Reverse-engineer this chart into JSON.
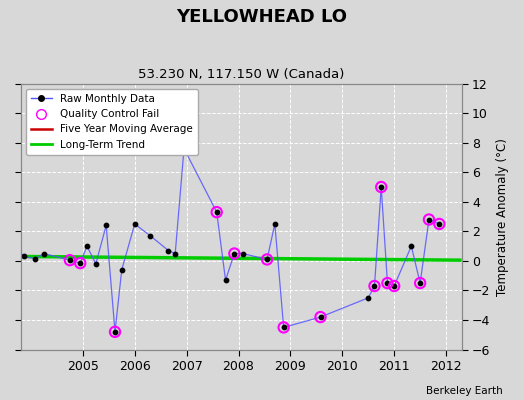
{
  "title": "YELLOWHEAD LO",
  "subtitle": "53.230 N, 117.150 W (Canada)",
  "ylabel_right": "Temperature Anomaly (°C)",
  "credit": "Berkeley Earth",
  "ylim": [
    -6,
    12
  ],
  "yticks": [
    -6,
    -4,
    -2,
    0,
    2,
    4,
    6,
    8,
    10,
    12
  ],
  "xlim": [
    2003.8,
    2012.3
  ],
  "xticks": [
    2005,
    2006,
    2007,
    2008,
    2009,
    2010,
    2011,
    2012
  ],
  "background_color": "#d8d8d8",
  "plot_bg_color": "#d8d8d8",
  "raw_x": [
    2003.75,
    2003.87,
    2004.08,
    2004.25,
    2004.75,
    2004.95,
    2005.08,
    2005.25,
    2005.45,
    2005.62,
    2005.75,
    2006.0,
    2006.3,
    2006.65,
    2006.78,
    2006.95,
    2007.58,
    2007.75,
    2007.92,
    2008.08,
    2008.55,
    2008.7,
    2008.87,
    2009.58,
    2010.5,
    2010.62,
    2010.75,
    2010.87,
    2011.0,
    2011.33,
    2011.5,
    2011.67,
    2011.87
  ],
  "raw_y": [
    0.7,
    0.3,
    0.15,
    0.5,
    0.05,
    -0.15,
    1.0,
    -0.2,
    2.4,
    -4.8,
    -0.6,
    2.5,
    1.7,
    0.7,
    0.5,
    7.6,
    3.3,
    -1.3,
    0.5,
    0.5,
    0.1,
    2.5,
    -4.5,
    -3.8,
    -2.5,
    -1.7,
    5.0,
    -1.5,
    -1.7,
    1.0,
    -1.5,
    2.8,
    2.5
  ],
  "qc_x": [
    2004.75,
    2004.95,
    2005.62,
    2006.95,
    2007.58,
    2007.92,
    2008.55,
    2008.87,
    2009.58,
    2010.62,
    2010.75,
    2010.87,
    2011.0,
    2011.5,
    2011.67,
    2011.87
  ],
  "qc_y": [
    0.05,
    -0.15,
    -4.8,
    7.6,
    3.3,
    0.5,
    0.1,
    -4.5,
    -3.8,
    -1.7,
    5.0,
    -1.5,
    -1.7,
    -1.5,
    2.8,
    2.5
  ],
  "trend_x": [
    2003.8,
    2012.3
  ],
  "trend_y": [
    0.3,
    0.05
  ],
  "grid_color": "#ffffff",
  "raw_line_color": "#5555ff",
  "raw_dot_color": "#000000",
  "qc_color": "#ff00ff",
  "trend_color": "#00cc00",
  "ma_color": "#cc0000",
  "left_tick_color": "#888888"
}
